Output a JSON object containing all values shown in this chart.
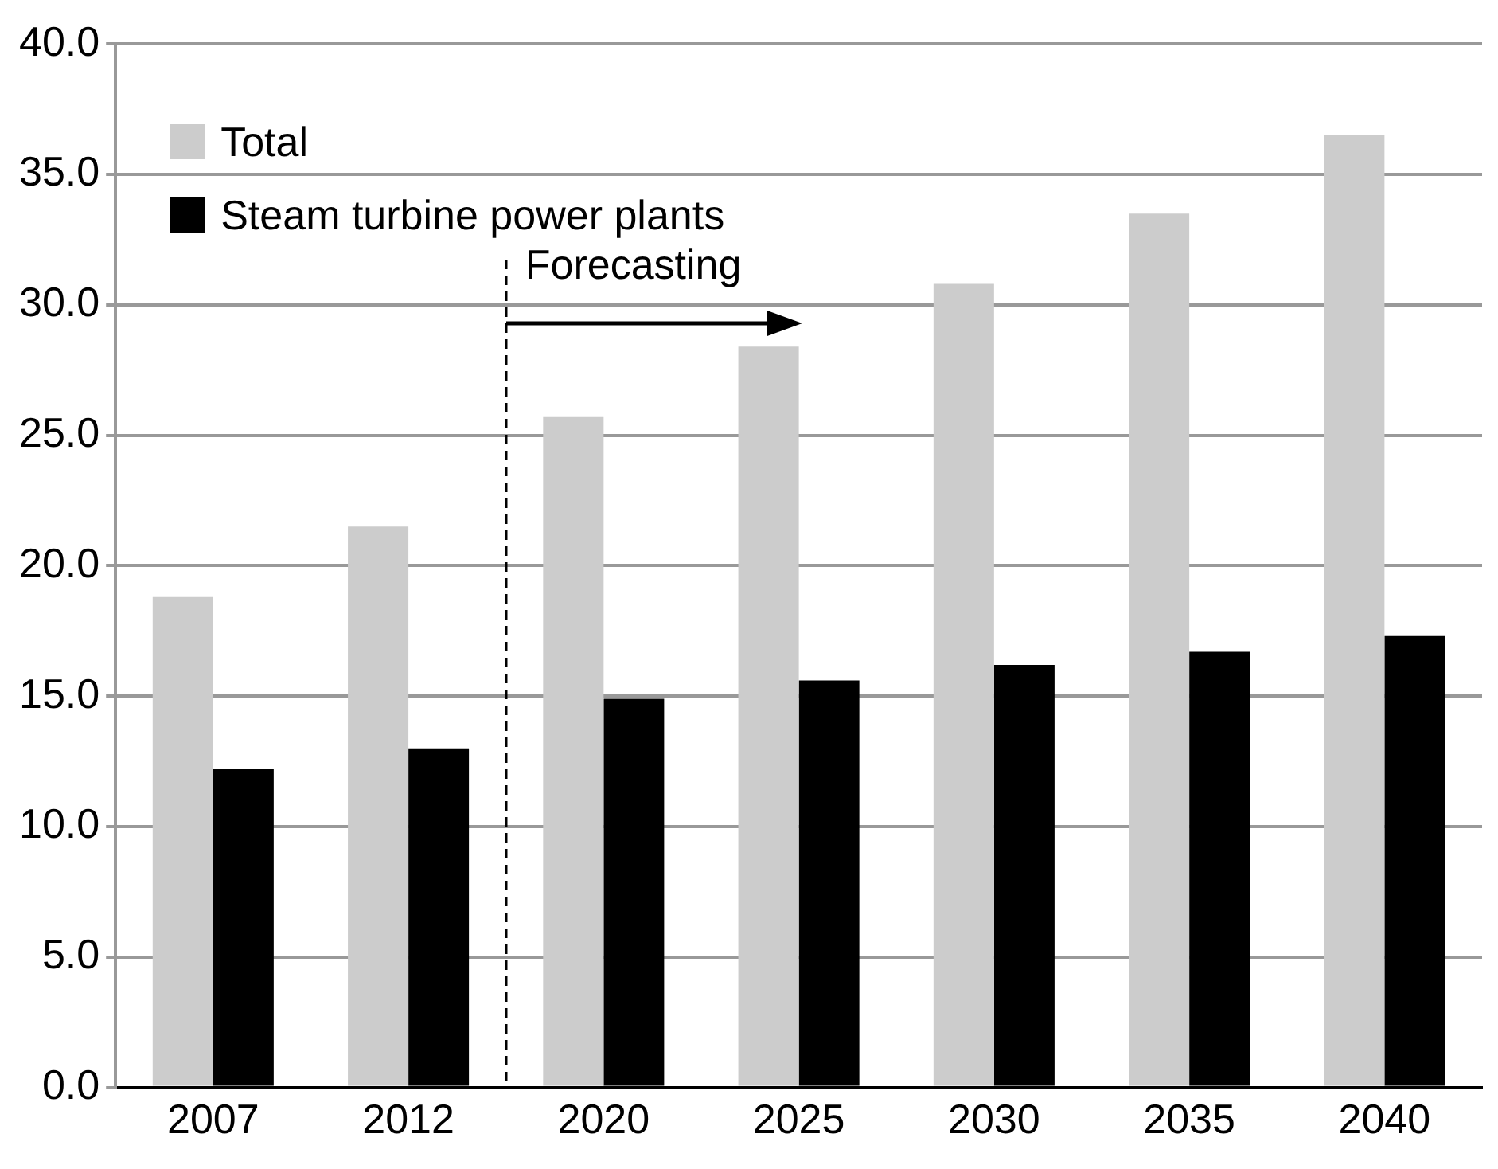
{
  "chart_data": {
    "type": "bar",
    "categories": [
      "2007",
      "2012",
      "2020",
      "2025",
      "2030",
      "2035",
      "2040"
    ],
    "series": [
      {
        "name": "Total",
        "color": "#cccccc",
        "values": [
          18.8,
          21.5,
          25.7,
          28.4,
          30.8,
          33.5,
          36.5
        ]
      },
      {
        "name": "Steam turbine power plants",
        "color": "#000000",
        "values": [
          12.2,
          13.0,
          14.9,
          15.6,
          16.2,
          16.7,
          17.3
        ]
      }
    ],
    "ylim": [
      0,
      40
    ],
    "yticks": [
      {
        "value": 0,
        "label": "0.0"
      },
      {
        "value": 5,
        "label": "5.0"
      },
      {
        "value": 10,
        "label": "10.0"
      },
      {
        "value": 15,
        "label": "15.0"
      },
      {
        "value": 20,
        "label": "20.0"
      },
      {
        "value": 25,
        "label": "25.0"
      },
      {
        "value": 30,
        "label": "30.0"
      },
      {
        "value": 35,
        "label": "35.0"
      },
      {
        "value": 40,
        "label": "40.0"
      }
    ],
    "grid": "y",
    "legend": "top left",
    "annotations": [
      "Forecasting"
    ]
  }
}
